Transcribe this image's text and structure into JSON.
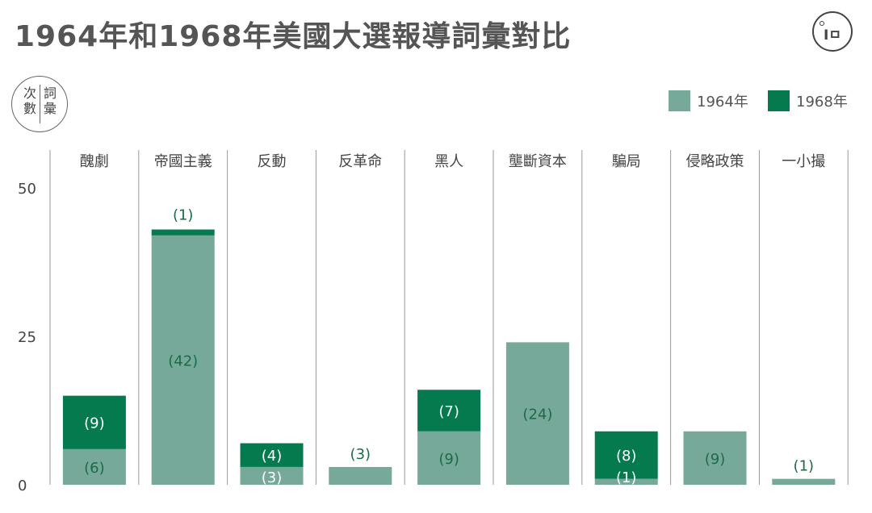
{
  "title": "1964年和1968年美國大選報導詞彙對比",
  "logo": {
    "text": "Iㅁ"
  },
  "y_axis_badge": {
    "col1": [
      "次",
      "數"
    ],
    "col2": [
      "詞",
      "彙"
    ]
  },
  "colors": {
    "series_1964": "#76a99a",
    "series_1968": "#067a4f",
    "label_text": "#1c6b47",
    "grid": "#9a9a9a",
    "axis_text": "#444444"
  },
  "chart_data": {
    "type": "bar",
    "stacked": true,
    "categories": [
      "醜劇",
      "帝國主義",
      "反動",
      "反革命",
      "黑人",
      "壟斷資本",
      "騙局",
      "侵略政策",
      "一小撮"
    ],
    "series": [
      {
        "name": "1964年",
        "values": [
          6,
          42,
          3,
          3,
          9,
          24,
          1,
          9,
          1
        ]
      },
      {
        "name": "1968年",
        "values": [
          9,
          1,
          4,
          0,
          7,
          0,
          8,
          0,
          0
        ]
      }
    ],
    "data_labels": [
      {
        "category": "醜劇",
        "text_1964": "(6)",
        "text_1968": "(9)"
      },
      {
        "category": "帝國主義",
        "text_1964": "(42)",
        "text_1968": "(1)"
      },
      {
        "category": "反動",
        "text_1964": "(3)",
        "text_1968": "(4)"
      },
      {
        "category": "反革命",
        "text_1964": "(3)",
        "text_1968": ""
      },
      {
        "category": "黑人",
        "text_1964": "(9)",
        "text_1968": "(7)"
      },
      {
        "category": "壟斷資本",
        "text_1964": "(24)",
        "text_1968": ""
      },
      {
        "category": "騙局",
        "text_1964": "(1)",
        "text_1968": "(8)"
      },
      {
        "category": "侵略政策",
        "text_1964": "(9)",
        "text_1968": ""
      },
      {
        "category": "一小撮",
        "text_1964": "(1)",
        "text_1968": ""
      }
    ],
    "yticks": [
      0,
      25,
      50
    ],
    "ylim": [
      0,
      50
    ],
    "legend_position": "top-right"
  }
}
